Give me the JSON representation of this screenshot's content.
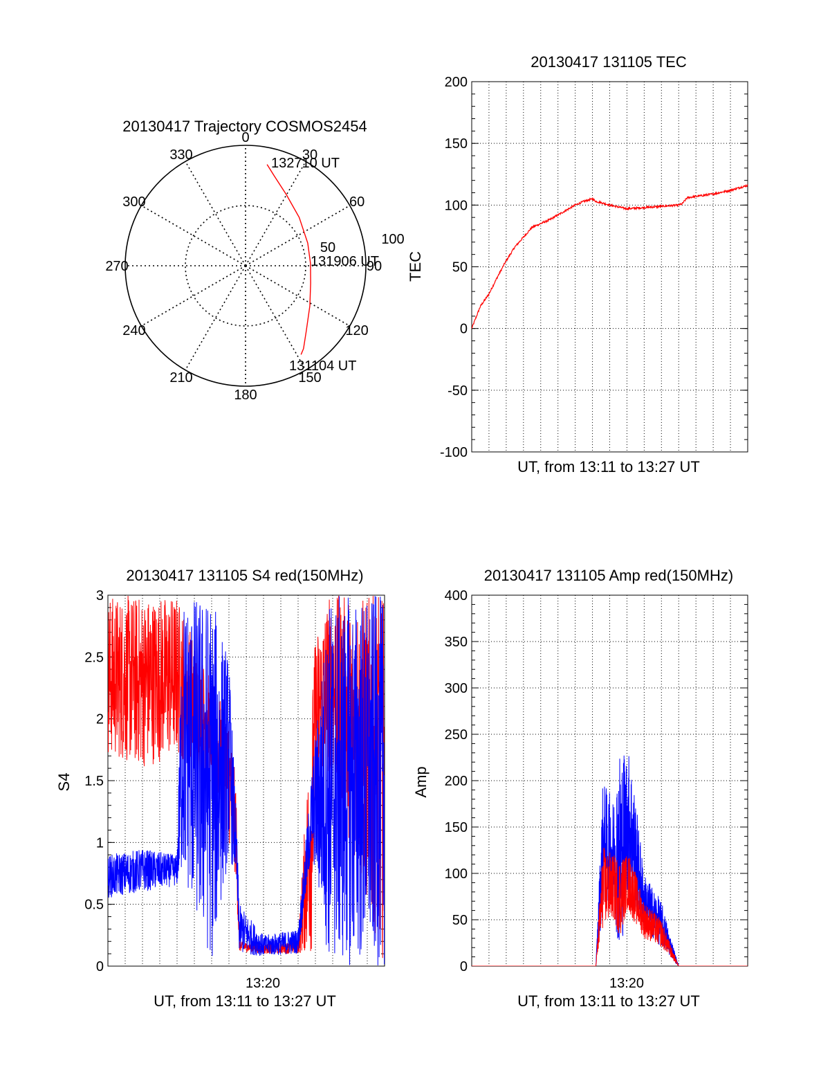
{
  "colors": {
    "red": "#ff0000",
    "blue": "#0000ff",
    "axis": "#000000",
    "grid": "#000000"
  },
  "polar": {
    "title": "20130417 Trajectory COSMOS2454",
    "azimuth_labels": [
      "0",
      "30",
      "60",
      "90",
      "120",
      "150",
      "180",
      "210",
      "240",
      "270",
      "300",
      "330"
    ],
    "ring_labels": [
      "50",
      "100"
    ],
    "zenith_rings": [
      50,
      100
    ],
    "time_labels": [
      "132710 UT",
      "131906 UT",
      "131104 UT"
    ],
    "trajectory": {
      "name": "COSMOS2454",
      "points": [
        {
          "az": 12,
          "zen": 86
        },
        {
          "az": 18,
          "zen": 78
        },
        {
          "az": 30,
          "zen": 68
        },
        {
          "az": 48,
          "zen": 60
        },
        {
          "az": 70,
          "zen": 55
        },
        {
          "az": 88,
          "zen": 54
        },
        {
          "az": 105,
          "zen": 56
        },
        {
          "az": 122,
          "zen": 63
        },
        {
          "az": 137,
          "zen": 74
        },
        {
          "az": 145,
          "zen": 84
        },
        {
          "az": 148,
          "zen": 87
        }
      ]
    }
  },
  "tec": {
    "title": "20130417 131105 TEC",
    "xlabel": "UT, from 13:11 to 13:27 UT",
    "ylabel": "TEC",
    "yticks": [
      "200",
      "150",
      "100",
      "50",
      "0",
      "-50",
      "-100"
    ],
    "chart_data": {
      "type": "line",
      "series": [
        {
          "color": "#ff0000",
          "x_minutes_after_1311": [
            0,
            0.5,
            1,
            1.5,
            2,
            2.5,
            3,
            3.5,
            4,
            4.5,
            5,
            5.5,
            6,
            6.5,
            7,
            7.2,
            7.5,
            8,
            9,
            10,
            11,
            12,
            12.2,
            12.5,
            13,
            14,
            15,
            16
          ],
          "values": [
            0,
            18,
            28,
            42,
            55,
            66,
            74,
            82,
            85,
            88,
            92,
            96,
            100,
            103,
            105,
            103,
            102,
            100,
            97,
            98,
            99,
            100,
            101,
            106,
            107,
            109,
            112,
            116
          ]
        }
      ],
      "ylim": [
        -100,
        200
      ],
      "xlim_minutes": [
        0,
        16
      ]
    }
  },
  "s4": {
    "title": "20130417 131105 S4 red(150MHz)",
    "xlabel": "UT, from 13:11 to 13:27 UT",
    "ylabel": "S4",
    "xtick_label": "13:20",
    "yticks": [
      "3",
      "2.5",
      "2",
      "1.5",
      "1",
      "0.5",
      "0"
    ],
    "chart_data": {
      "type": "line",
      "ylim": [
        0,
        3
      ],
      "xlim_minutes": [
        0,
        16
      ],
      "series": [
        {
          "color": "#ff0000",
          "envelope_low": [
            [
              0,
              1.7
            ],
            [
              2,
              1.6
            ],
            [
              4,
              1.7
            ],
            [
              6,
              1.5
            ],
            [
              7,
              1.0
            ],
            [
              7.4,
              0.7
            ],
            [
              7.6,
              0.12
            ],
            [
              9,
              0.1
            ],
            [
              11,
              0.1
            ],
            [
              11.8,
              0.1
            ],
            [
              12,
              1.2
            ],
            [
              12.8,
              1.6
            ],
            [
              16,
              0.0
            ]
          ],
          "envelope_high": [
            [
              0,
              3
            ],
            [
              2,
              3
            ],
            [
              4,
              3
            ],
            [
              6,
              2.3
            ],
            [
              7,
              2.0
            ],
            [
              7.4,
              1.5
            ],
            [
              7.6,
              0.2
            ],
            [
              9,
              0.18
            ],
            [
              11,
              0.2
            ],
            [
              11.8,
              2.2
            ],
            [
              12,
              2.7
            ],
            [
              12.8,
              3
            ],
            [
              16,
              3
            ]
          ]
        },
        {
          "color": "#0000ff",
          "envelope_low": [
            [
              0,
              0.55
            ],
            [
              2,
              0.6
            ],
            [
              4,
              0.65
            ],
            [
              4.3,
              0.7
            ],
            [
              6,
              0.0
            ],
            [
              7,
              0.9
            ],
            [
              7.4,
              0.7
            ],
            [
              7.6,
              0.1
            ],
            [
              9,
              0.08
            ],
            [
              11,
              0.1
            ],
            [
              11.8,
              0.9
            ],
            [
              12.8,
              0.0
            ],
            [
              16,
              0.0
            ]
          ],
          "envelope_high": [
            [
              0,
              0.9
            ],
            [
              2,
              0.95
            ],
            [
              4,
              0.9
            ],
            [
              4.3,
              3
            ],
            [
              6,
              3
            ],
            [
              7,
              2.5
            ],
            [
              7.4,
              1.3
            ],
            [
              7.6,
              0.5
            ],
            [
              9,
              0.25
            ],
            [
              11,
              0.3
            ],
            [
              11.8,
              1.6
            ],
            [
              12.8,
              3
            ],
            [
              16,
              3
            ]
          ]
        }
      ]
    }
  },
  "amp": {
    "title": "20130417 131105 Amp red(150MHz)",
    "xlabel": "UT, from 13:11 to 13:27 UT",
    "ylabel": "Amp",
    "xtick_label": "13:20",
    "yticks": [
      "400",
      "350",
      "300",
      "250",
      "200",
      "150",
      "100",
      "50",
      "0"
    ],
    "chart_data": {
      "type": "line",
      "ylim": [
        0,
        400
      ],
      "xlim_minutes": [
        0,
        16
      ],
      "series": [
        {
          "color": "#0000ff",
          "envelope_low": [
            [
              7.2,
              0
            ],
            [
              7.6,
              60
            ],
            [
              8.2,
              70
            ],
            [
              8.6,
              0
            ],
            [
              9.0,
              80
            ],
            [
              10.0,
              40
            ],
            [
              11.0,
              20
            ],
            [
              12.0,
              0
            ]
          ],
          "envelope_high": [
            [
              7.2,
              0
            ],
            [
              7.6,
              200
            ],
            [
              8.2,
              180
            ],
            [
              8.6,
              240
            ],
            [
              9.2,
              230
            ],
            [
              10.0,
              100
            ],
            [
              11.0,
              70
            ],
            [
              12.0,
              0
            ]
          ]
        },
        {
          "color": "#ff0000",
          "envelope_low": [
            [
              7.2,
              0
            ],
            [
              7.6,
              40
            ],
            [
              8.2,
              50
            ],
            [
              8.6,
              30
            ],
            [
              9.0,
              60
            ],
            [
              10.0,
              30
            ],
            [
              11.0,
              20
            ],
            [
              12.0,
              0
            ]
          ],
          "envelope_high": [
            [
              7.2,
              0
            ],
            [
              7.6,
              130
            ],
            [
              8.2,
              120
            ],
            [
              8.6,
              120
            ],
            [
              9.2,
              120
            ],
            [
              10.0,
              70
            ],
            [
              11.0,
              50
            ],
            [
              12.0,
              0
            ]
          ]
        }
      ]
    }
  }
}
